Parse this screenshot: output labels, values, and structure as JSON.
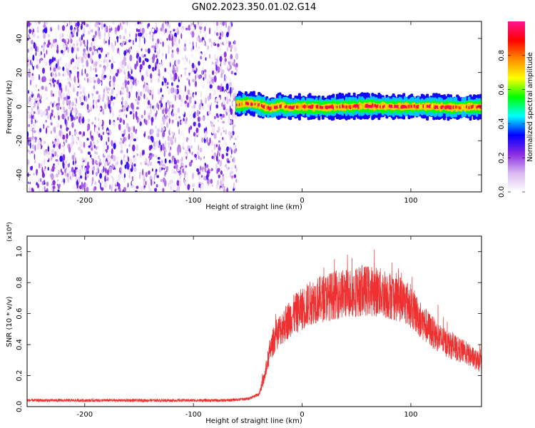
{
  "title": "GN02.2023.350.01.02.G14",
  "colorbar": {
    "label": "Normalized spectral amplitude",
    "ticks": [
      "0.0",
      "0.2",
      "0.4",
      "0.6",
      "0.8"
    ],
    "tick_values": [
      0.0,
      0.2,
      0.4,
      0.6,
      0.8
    ],
    "range": [
      0,
      1
    ],
    "colormap": [
      "#ffffff",
      "#d9b8f0",
      "#8a2be2",
      "#0000ff",
      "#00ffff",
      "#00ff00",
      "#ffff00",
      "#ff8c00",
      "#ff0000",
      "#ff1493"
    ]
  },
  "chart_data": [
    {
      "type": "heatmap",
      "panel": "spectrogram",
      "xlabel": "Height of straight line (km)",
      "ylabel": "Frequency (Hz)",
      "xlim": [
        -253,
        165
      ],
      "ylim": [
        -50,
        50
      ],
      "x_ticks": [
        -200,
        -100,
        0,
        100
      ],
      "x_tick_labels": [
        "-200",
        "-100",
        "0",
        "100"
      ],
      "y_ticks": [
        -40,
        -20,
        0,
        20,
        40
      ],
      "y_tick_labels": [
        "-40",
        "-20",
        "0",
        "20",
        "40"
      ],
      "noise_region_x": [
        -253,
        -60
      ],
      "noise_amplitude_range": [
        0.0,
        0.3
      ],
      "signal_region_x": [
        -60,
        165
      ],
      "signal_frequency_hz": [
        [
          -60,
          1.2
        ],
        [
          -50,
          2.0
        ],
        [
          -40,
          1.0
        ],
        [
          -30,
          -1.0
        ],
        [
          -20,
          0.5
        ],
        [
          -10,
          -0.5
        ],
        [
          0,
          0.0
        ],
        [
          20,
          -0.5
        ],
        [
          40,
          0.0
        ],
        [
          60,
          0.5
        ],
        [
          80,
          0.0
        ],
        [
          100,
          0.0
        ],
        [
          120,
          0.0
        ],
        [
          140,
          -0.5
        ],
        [
          165,
          0.0
        ]
      ],
      "signal_peak_amplitude": 0.95
    },
    {
      "type": "line",
      "panel": "snr",
      "xlabel": "Height of straight line (km)",
      "ylabel": "SNR (10 * v/v)",
      "y_multiplier": "(x10⁴)",
      "xlim": [
        -253,
        165
      ],
      "ylim": [
        0,
        1.1
      ],
      "x_ticks": [
        -200,
        -100,
        0,
        100
      ],
      "x_tick_labels": [
        "-200",
        "-100",
        "0",
        "100"
      ],
      "y_ticks": [
        0.0,
        0.2,
        0.4,
        0.6,
        0.8,
        1.0
      ],
      "y_tick_labels": [
        "0.0",
        "0.2",
        "0.4",
        "0.6",
        "0.8",
        "1.0"
      ],
      "color": "#ee3030",
      "series": [
        {
          "x": [
            -253,
            -200,
            -150,
            -100,
            -70,
            -50,
            -40,
            -35,
            -30,
            -25,
            -20,
            -10,
            0,
            10,
            20,
            30,
            40,
            50,
            60,
            70,
            80,
            90,
            100,
            110,
            120,
            130,
            140,
            150,
            160,
            165
          ],
          "values": [
            0.04,
            0.04,
            0.04,
            0.04,
            0.04,
            0.05,
            0.08,
            0.18,
            0.35,
            0.45,
            0.5,
            0.58,
            0.63,
            0.68,
            0.7,
            0.72,
            0.73,
            0.74,
            0.75,
            0.74,
            0.72,
            0.7,
            0.65,
            0.55,
            0.48,
            0.42,
            0.38,
            0.35,
            0.3,
            0.28
          ]
        }
      ]
    }
  ]
}
